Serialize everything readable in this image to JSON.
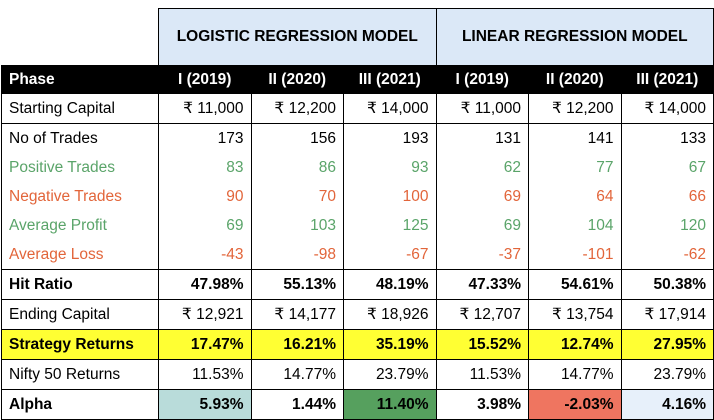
{
  "headers": {
    "model_a": "LOGISTIC REGRESSION MODEL",
    "model_b": "LINEAR REGRESSION MODEL"
  },
  "columns": [
    "Phase",
    "I (2019)",
    "II (2020)",
    "III (2021)",
    "I (2019)",
    "II (2020)",
    "III (2021)"
  ],
  "rows": [
    {
      "label": "Starting Capital",
      "values": [
        "₹ 11,000",
        "₹ 12,200",
        "₹ 14,000",
        "₹ 11,000",
        "₹ 12,200",
        "₹ 14,000"
      ]
    },
    {
      "label": "No of Trades",
      "values": [
        "173",
        "156",
        "193",
        "131",
        "141",
        "133"
      ]
    },
    {
      "label": "Positive Trades",
      "values": [
        "83",
        "86",
        "93",
        "62",
        "77",
        "67"
      ]
    },
    {
      "label": "Negative Trades",
      "values": [
        "90",
        "70",
        "100",
        "69",
        "64",
        "66"
      ]
    },
    {
      "label": "Average Profit",
      "values": [
        "69",
        "103",
        "125",
        "69",
        "104",
        "120"
      ]
    },
    {
      "label": "Average Loss",
      "values": [
        "-43",
        "-98",
        "-67",
        "-37",
        "-101",
        "-62"
      ]
    },
    {
      "label": "Hit Ratio",
      "values": [
        "47.98%",
        "55.13%",
        "48.19%",
        "47.33%",
        "54.61%",
        "50.38%"
      ]
    },
    {
      "label": "Ending Capital",
      "values": [
        "₹ 12,921",
        "₹ 14,177",
        "₹ 18,926",
        "₹ 12,707",
        "₹ 13,754",
        "₹ 17,914"
      ]
    },
    {
      "label": "Strategy Returns",
      "values": [
        "17.47%",
        "16.21%",
        "35.19%",
        "15.52%",
        "12.74%",
        "27.95%"
      ]
    },
    {
      "label": "Nifty 50 Returns",
      "values": [
        "11.53%",
        "14.77%",
        "23.79%",
        "11.53%",
        "14.77%",
        "23.79%"
      ]
    },
    {
      "label": "Alpha",
      "values": [
        "5.93%",
        "1.44%",
        "11.40%",
        "3.98%",
        "-2.03%",
        "4.16%"
      ]
    }
  ],
  "colors": {
    "header_bg": "#dbe8f7",
    "positive_text": "#5aa469",
    "negative_text": "#e2653a",
    "highlight_row": "#ffff33",
    "alpha_cells": [
      "#b9dcda",
      "#ffffff",
      "#56a05e",
      "#ffffff",
      "#ef7560",
      "#e7f0fa"
    ]
  }
}
